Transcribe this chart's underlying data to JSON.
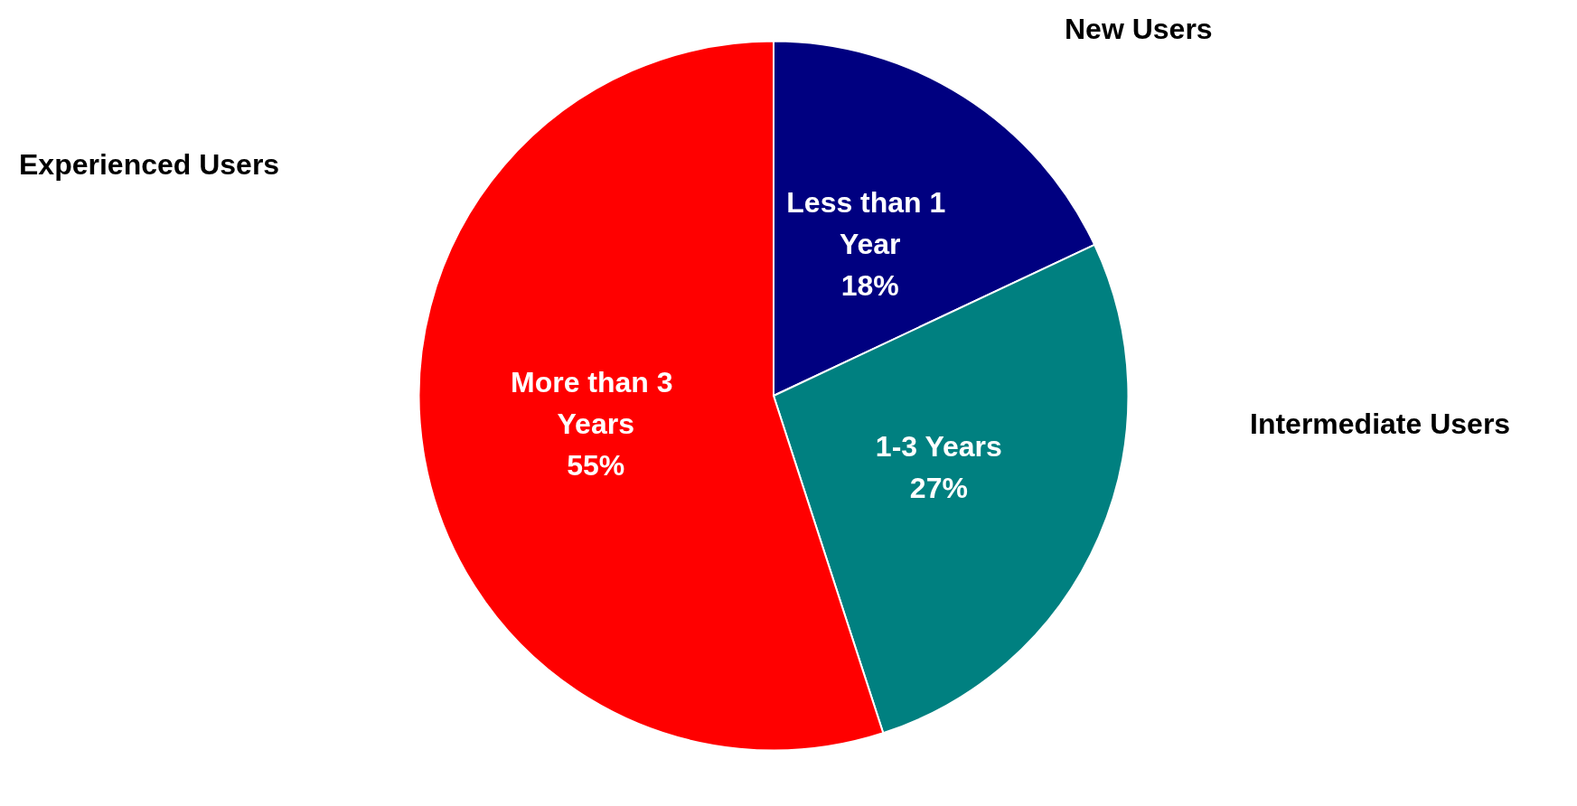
{
  "chart_data": {
    "type": "pie",
    "categories": [
      "Less than 1 Year",
      "1-3 Years",
      "More than 3 Years"
    ],
    "values": [
      18,
      27,
      55
    ],
    "colors": [
      "#000080",
      "#008080",
      "#ff0000"
    ],
    "value_labels": [
      "18%",
      "27%",
      "55%"
    ],
    "legend": false,
    "annotations": [
      "New Users",
      "Intermediate Users",
      "Experienced Users"
    ]
  }
}
